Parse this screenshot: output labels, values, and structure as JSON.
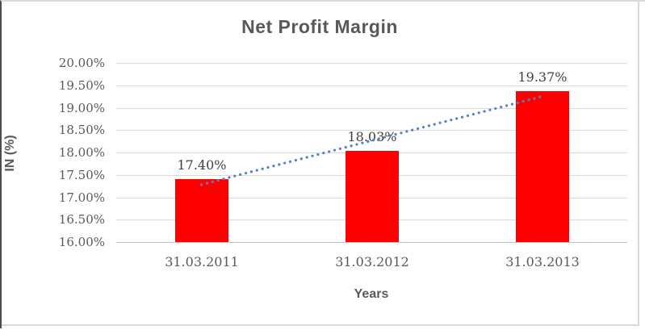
{
  "chart_data": {
    "type": "bar",
    "title": "Net Profit Margin",
    "categories": [
      "31.03.2011",
      "31.03.2012",
      "31.03.2013"
    ],
    "values": [
      17.4,
      18.03,
      19.37
    ],
    "data_labels": [
      "17.40%",
      "18.03%",
      "19.37%"
    ],
    "xlabel": "Years",
    "ylabel": "IN (%)",
    "ylim": [
      16.0,
      20.0
    ],
    "ytick_step": 0.5,
    "ytick_labels": [
      "20.00%",
      "19.50%",
      "19.00%",
      "18.50%",
      "18.00%",
      "17.50%",
      "17.00%",
      "16.50%",
      "16.00%"
    ],
    "grid": true,
    "legend_position": "none",
    "bar_color": "#FF0000",
    "trendline": {
      "type": "linear",
      "style": "dotted",
      "color": "#4E82C9"
    },
    "colors": {
      "title_text": "#595959",
      "axis_title_text": "#595959",
      "tick_text": "#595959",
      "data_label_text": "#404040",
      "gridline": "#D9D9D9",
      "axis_line": "#BFBFBF"
    }
  }
}
